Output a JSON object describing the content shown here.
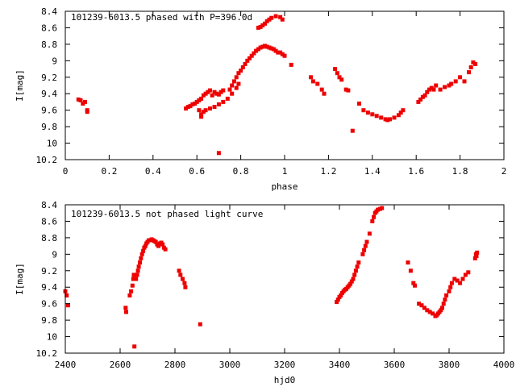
{
  "chart_data": [
    {
      "type": "scatter",
      "title": "101239-6013.5 phased with P=396.0d",
      "xlabel": "phase",
      "ylabel": "I[mag]",
      "xlim": [
        0,
        2
      ],
      "ylim": [
        10.2,
        8.4
      ],
      "y_inverted": true,
      "xticks": [
        0,
        0.2,
        0.4,
        0.6,
        0.8,
        1,
        1.2,
        1.4,
        1.6,
        1.8,
        2
      ],
      "yticks": [
        8.4,
        8.6,
        8.8,
        9,
        9.2,
        9.4,
        9.6,
        9.8,
        10,
        10.2
      ],
      "xtick_labels": [
        "0",
        "0.2",
        "0.4",
        "0.6",
        "0.8",
        "1",
        "1.2",
        "1.4",
        "1.6",
        "1.8",
        "2"
      ],
      "ytick_labels": [
        "8.4",
        "8.6",
        "8.8",
        "9",
        "9.2",
        "9.4",
        "9.6",
        "9.8",
        "10",
        "10.2"
      ],
      "color": "#ee0000",
      "points": [
        [
          0.06,
          9.47
        ],
        [
          0.07,
          9.48
        ],
        [
          0.08,
          9.52
        ],
        [
          0.09,
          9.5
        ],
        [
          0.1,
          9.6
        ],
        [
          0.1,
          9.62
        ],
        [
          0.55,
          9.58
        ],
        [
          0.56,
          9.56
        ],
        [
          0.57,
          9.55
        ],
        [
          0.58,
          9.53
        ],
        [
          0.59,
          9.52
        ],
        [
          0.6,
          9.5
        ],
        [
          0.61,
          9.48
        ],
        [
          0.62,
          9.46
        ],
        [
          0.61,
          9.6
        ],
        [
          0.62,
          9.65
        ],
        [
          0.62,
          9.68
        ],
        [
          0.63,
          9.62
        ],
        [
          0.63,
          9.42
        ],
        [
          0.64,
          9.4
        ],
        [
          0.65,
          9.38
        ],
        [
          0.66,
          9.36
        ],
        [
          0.67,
          9.42
        ],
        [
          0.68,
          9.38
        ],
        [
          0.69,
          9.4
        ],
        [
          0.7,
          9.41
        ],
        [
          0.71,
          9.38
        ],
        [
          0.72,
          9.36
        ],
        [
          0.64,
          9.6
        ],
        [
          0.66,
          9.58
        ],
        [
          0.68,
          9.56
        ],
        [
          0.7,
          9.53
        ],
        [
          0.72,
          9.5
        ],
        [
          0.74,
          9.46
        ],
        [
          0.76,
          9.4
        ],
        [
          0.78,
          9.33
        ],
        [
          0.79,
          9.28
        ],
        [
          0.7,
          10.12
        ],
        [
          0.75,
          9.35
        ],
        [
          0.76,
          9.3
        ],
        [
          0.77,
          9.25
        ],
        [
          0.78,
          9.2
        ],
        [
          0.79,
          9.15
        ],
        [
          0.8,
          9.12
        ],
        [
          0.81,
          9.08
        ],
        [
          0.82,
          9.04
        ],
        [
          0.83,
          9.0
        ],
        [
          0.84,
          8.97
        ],
        [
          0.85,
          8.94
        ],
        [
          0.86,
          8.91
        ],
        [
          0.87,
          8.88
        ],
        [
          0.88,
          8.86
        ],
        [
          0.89,
          8.84
        ],
        [
          0.9,
          8.83
        ],
        [
          0.91,
          8.82
        ],
        [
          0.92,
          8.83
        ],
        [
          0.93,
          8.84
        ],
        [
          0.94,
          8.85
        ],
        [
          0.95,
          8.86
        ],
        [
          0.96,
          8.88
        ],
        [
          0.97,
          8.9
        ],
        [
          0.98,
          8.9
        ],
        [
          0.99,
          8.92
        ],
        [
          1.0,
          8.94
        ],
        [
          1.03,
          9.05
        ],
        [
          0.88,
          8.6
        ],
        [
          0.89,
          8.59
        ],
        [
          0.9,
          8.57
        ],
        [
          0.91,
          8.55
        ],
        [
          0.92,
          8.52
        ],
        [
          0.93,
          8.5
        ],
        [
          0.94,
          8.48
        ],
        [
          0.96,
          8.46
        ],
        [
          0.98,
          8.47
        ],
        [
          0.99,
          8.5
        ],
        [
          1.12,
          9.2
        ],
        [
          1.13,
          9.25
        ],
        [
          1.15,
          9.28
        ],
        [
          1.17,
          9.35
        ],
        [
          1.18,
          9.4
        ],
        [
          1.23,
          9.1
        ],
        [
          1.24,
          9.15
        ],
        [
          1.25,
          9.2
        ],
        [
          1.26,
          9.23
        ],
        [
          1.28,
          9.35
        ],
        [
          1.29,
          9.36
        ],
        [
          1.31,
          9.85
        ],
        [
          1.34,
          9.52
        ],
        [
          1.36,
          9.6
        ],
        [
          1.38,
          9.63
        ],
        [
          1.4,
          9.65
        ],
        [
          1.42,
          9.67
        ],
        [
          1.44,
          9.69
        ],
        [
          1.46,
          9.71
        ],
        [
          1.47,
          9.72
        ],
        [
          1.48,
          9.71
        ],
        [
          1.5,
          9.69
        ],
        [
          1.52,
          9.66
        ],
        [
          1.53,
          9.63
        ],
        [
          1.54,
          9.6
        ],
        [
          1.61,
          9.5
        ],
        [
          1.62,
          9.47
        ],
        [
          1.63,
          9.44
        ],
        [
          1.64,
          9.42
        ],
        [
          1.65,
          9.38
        ],
        [
          1.66,
          9.35
        ],
        [
          1.67,
          9.33
        ],
        [
          1.68,
          9.35
        ],
        [
          1.69,
          9.3
        ],
        [
          1.71,
          9.35
        ],
        [
          1.73,
          9.32
        ],
        [
          1.75,
          9.3
        ],
        [
          1.76,
          9.28
        ],
        [
          1.78,
          9.25
        ],
        [
          1.8,
          9.2
        ],
        [
          1.82,
          9.25
        ],
        [
          1.84,
          9.14
        ],
        [
          1.85,
          9.08
        ],
        [
          1.86,
          9.02
        ],
        [
          1.87,
          9.04
        ]
      ]
    },
    {
      "type": "scatter",
      "title": "101239-6013.5 not phased light curve",
      "xlabel": "hjd0",
      "ylabel": "I[mag]",
      "xlim": [
        2400,
        4000
      ],
      "ylim": [
        10.2,
        8.4
      ],
      "y_inverted": true,
      "xticks": [
        2400,
        2600,
        2800,
        3000,
        3200,
        3400,
        3600,
        3800,
        4000
      ],
      "yticks": [
        8.4,
        8.6,
        8.8,
        9,
        9.2,
        9.4,
        9.6,
        9.8,
        10,
        10.2
      ],
      "xtick_labels": [
        "2400",
        "2600",
        "2800",
        "3000",
        "3200",
        "3400",
        "3600",
        "3800",
        "4000"
      ],
      "ytick_labels": [
        "8.4",
        "8.6",
        "8.8",
        "9",
        "9.2",
        "9.4",
        "9.6",
        "9.8",
        "10",
        "10.2"
      ],
      "color": "#ee0000",
      "points": [
        [
          2400,
          9.45
        ],
        [
          2405,
          9.5
        ],
        [
          2410,
          9.62
        ],
        [
          2620,
          9.65
        ],
        [
          2622,
          9.7
        ],
        [
          2635,
          9.5
        ],
        [
          2640,
          9.45
        ],
        [
          2645,
          9.38
        ],
        [
          2648,
          9.3
        ],
        [
          2650,
          9.25
        ],
        [
          2652,
          10.12
        ],
        [
          2658,
          9.3
        ],
        [
          2662,
          9.25
        ],
        [
          2665,
          9.2
        ],
        [
          2668,
          9.15
        ],
        [
          2672,
          9.1
        ],
        [
          2676,
          9.05
        ],
        [
          2680,
          9.0
        ],
        [
          2684,
          8.96
        ],
        [
          2688,
          8.92
        ],
        [
          2692,
          8.9
        ],
        [
          2696,
          8.87
        ],
        [
          2700,
          8.85
        ],
        [
          2705,
          8.83
        ],
        [
          2710,
          8.83
        ],
        [
          2715,
          8.82
        ],
        [
          2720,
          8.83
        ],
        [
          2725,
          8.84
        ],
        [
          2730,
          8.85
        ],
        [
          2735,
          8.88
        ],
        [
          2740,
          8.9
        ],
        [
          2745,
          8.87
        ],
        [
          2750,
          8.86
        ],
        [
          2755,
          8.88
        ],
        [
          2760,
          8.92
        ],
        [
          2765,
          8.94
        ],
        [
          2815,
          9.2
        ],
        [
          2820,
          9.25
        ],
        [
          2828,
          9.3
        ],
        [
          2835,
          9.35
        ],
        [
          2838,
          9.4
        ],
        [
          2892,
          9.85
        ],
        [
          3390,
          9.58
        ],
        [
          3395,
          9.55
        ],
        [
          3400,
          9.52
        ],
        [
          3405,
          9.5
        ],
        [
          3410,
          9.47
        ],
        [
          3415,
          9.45
        ],
        [
          3420,
          9.43
        ],
        [
          3425,
          9.42
        ],
        [
          3430,
          9.4
        ],
        [
          3435,
          9.38
        ],
        [
          3440,
          9.36
        ],
        [
          3445,
          9.33
        ],
        [
          3450,
          9.3
        ],
        [
          3455,
          9.25
        ],
        [
          3460,
          9.2
        ],
        [
          3465,
          9.15
        ],
        [
          3470,
          9.1
        ],
        [
          3485,
          9.0
        ],
        [
          3490,
          8.95
        ],
        [
          3495,
          8.9
        ],
        [
          3500,
          8.85
        ],
        [
          3510,
          8.75
        ],
        [
          3520,
          8.6
        ],
        [
          3525,
          8.55
        ],
        [
          3530,
          8.5
        ],
        [
          3535,
          8.48
        ],
        [
          3540,
          8.46
        ],
        [
          3548,
          8.45
        ],
        [
          3555,
          8.44
        ],
        [
          3650,
          9.1
        ],
        [
          3660,
          9.2
        ],
        [
          3670,
          9.35
        ],
        [
          3675,
          9.38
        ],
        [
          3690,
          9.6
        ],
        [
          3700,
          9.62
        ],
        [
          3710,
          9.65
        ],
        [
          3720,
          9.68
        ],
        [
          3730,
          9.7
        ],
        [
          3740,
          9.72
        ],
        [
          3750,
          9.75
        ],
        [
          3755,
          9.74
        ],
        [
          3760,
          9.72
        ],
        [
          3765,
          9.7
        ],
        [
          3770,
          9.68
        ],
        [
          3775,
          9.65
        ],
        [
          3780,
          9.6
        ],
        [
          3785,
          9.55
        ],
        [
          3790,
          9.5
        ],
        [
          3800,
          9.45
        ],
        [
          3805,
          9.4
        ],
        [
          3810,
          9.35
        ],
        [
          3820,
          9.3
        ],
        [
          3830,
          9.32
        ],
        [
          3840,
          9.35
        ],
        [
          3850,
          9.3
        ],
        [
          3860,
          9.25
        ],
        [
          3870,
          9.22
        ],
        [
          3895,
          9.05
        ],
        [
          3898,
          9.0
        ],
        [
          3900,
          9.02
        ],
        [
          3902,
          8.98
        ]
      ]
    }
  ]
}
